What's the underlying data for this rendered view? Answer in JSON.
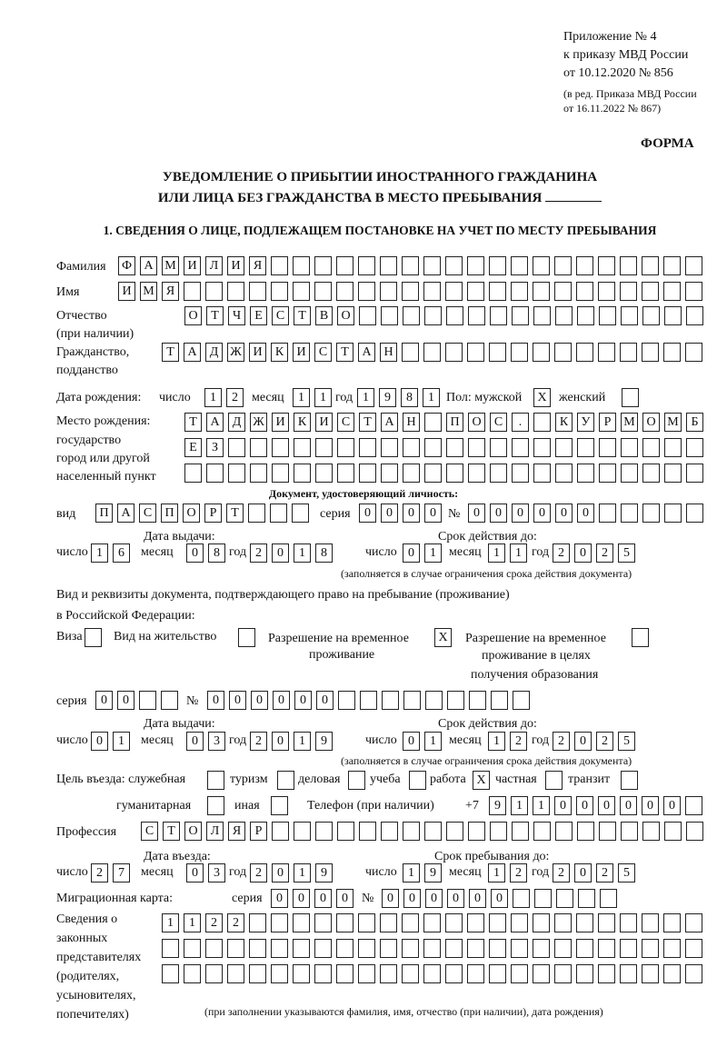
{
  "header": {
    "line1": "Приложение № 4",
    "line2": "к приказу МВД России",
    "line3": "от 10.12.2020 № 856",
    "line4": "(в ред. Приказа МВД России",
    "line5": "от 16.11.2022 № 867)",
    "form_label": "ФОРМА",
    "title1": "УВЕДОМЛЕНИЕ О ПРИБЫТИИ ИНОСТРАННОГО ГРАЖДАНИНА",
    "title2": "ИЛИ ЛИЦА БЕЗ ГРАЖДАНСТВА В МЕСТО ПРЕБЫВАНИЯ",
    "section1": "1. СВЕДЕНИЯ О ЛИЦЕ, ПОДЛЕЖАЩЕМ ПОСТАНОВКЕ НА УЧЕТ ПО МЕСТУ ПРЕБЫВАНИЯ"
  },
  "labels": {
    "surname": "Фамилия",
    "name": "Имя",
    "patronymic1": "Отчество",
    "patronymic2": "(при наличии)",
    "citizenship1": "Гражданство,",
    "citizenship2": "подданство",
    "birth_date": "Дата рождения:",
    "day": "число",
    "month": "месяц",
    "year": "год",
    "sex_male": "Пол: мужской",
    "sex_female": "женский",
    "birthplace1": "Место рождения:",
    "birthplace2": "государство",
    "birthplace3": "город или другой",
    "birthplace4": "населенный пункт",
    "id_doc": "Документ, удостоверяющий личность:",
    "kind": "вид",
    "series": "серия",
    "number": "№",
    "issue_date": "Дата выдачи:",
    "valid_until": "Срок действия до:",
    "valid_note": "(заполняется в случае ограничения срока действия документа)",
    "right_doc1": "Вид и реквизиты документа, подтверждающего право на пребывание (проживание)",
    "right_doc2": "в Российской Федерации:",
    "visa": "Виза",
    "residence": "Вид на жительство",
    "trp1": "Разрешение на временное",
    "trp2": "проживание",
    "trp_edu1": "Разрешение на временное",
    "trp_edu2": "проживание в целях",
    "trp_edu3": "получения образования",
    "purpose": "Цель въезда: служебная",
    "tourism": "туризм",
    "business": "деловая",
    "study": "учеба",
    "work": "работа",
    "private": "частная",
    "transit": "транзит",
    "humanitarian": "гуманитарная",
    "other": "иная",
    "phone": "Телефон (при наличии)",
    "phone_prefix": "+7",
    "profession": "Профессия",
    "entry_date": "Дата въезда:",
    "stay_until": "Срок пребывания до:",
    "migration_card": "Миграционная карта:",
    "reps1": "Сведения о",
    "reps2": "законных",
    "reps3": "представителях",
    "reps4": "(родителях,",
    "reps5": "усыновителях,",
    "reps6": "попечителях)",
    "reps_note": "(при заполнении указываются фамилия, имя, отчество (при наличии), дата рождения)"
  },
  "person": {
    "surname": "ФАМИЛИЯ",
    "name": "ИМЯ",
    "patronymic": "ОТЧЕСТВО",
    "citizenship": "ТАДЖИКИСТАН",
    "birth_day": "12",
    "birth_month": "11",
    "birth_year": "1981",
    "sex_male": "X",
    "sex_female": "",
    "birthplace_row1": "ТАДЖИКИСТАН ПОС. КУРМОМБ",
    "birthplace_row2": "ЕЗ",
    "birthplace_row3": ""
  },
  "id_document": {
    "kind": "ПАСПОРТ",
    "series": "0000",
    "number": "000000",
    "issue_day": "16",
    "issue_month": "08",
    "issue_year": "2018",
    "valid_day": "01",
    "valid_month": "11",
    "valid_year": "2025"
  },
  "right_document": {
    "visa": "",
    "residence": "",
    "trp": "X",
    "trp_edu": "",
    "series": "00",
    "number": "000000",
    "issue_day": "01",
    "issue_month": "03",
    "issue_year": "2019",
    "valid_day": "01",
    "valid_month": "12",
    "valid_year": "2025"
  },
  "purpose": {
    "official": "",
    "tourism": "",
    "business": "",
    "study": "",
    "work": "X",
    "private": "",
    "transit": "",
    "humanitarian": "",
    "other": ""
  },
  "phone": "911000000",
  "profession": "СТОЛЯР",
  "stay": {
    "entry_day": "27",
    "entry_month": "03",
    "entry_year": "2019",
    "until_day": "19",
    "until_month": "12",
    "until_year": "2025"
  },
  "migration_card": {
    "series": "0000",
    "number": "000000"
  },
  "representatives": {
    "row1": "1122",
    "row2": "",
    "row3": ""
  }
}
